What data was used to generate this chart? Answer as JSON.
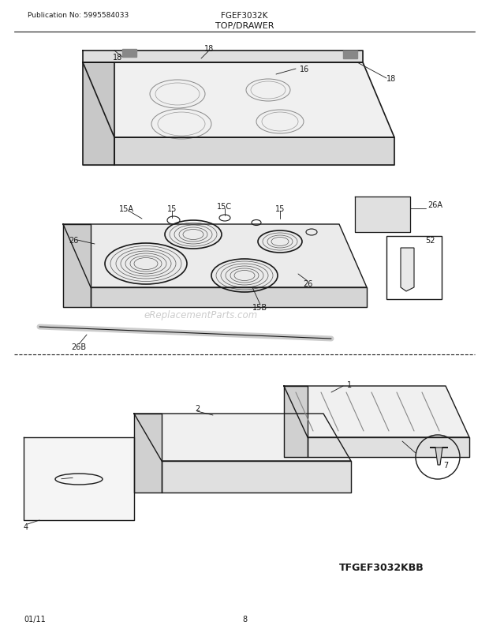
{
  "title": "TOP/DRAWER",
  "model": "FGEF3032K",
  "pub_no": "Publication No: 5995584033",
  "footer_model": "TFGEF3032KBB",
  "date": "01/11",
  "page": "8",
  "bg_color": "#ffffff",
  "line_color": "#1a1a1a",
  "text_color": "#1a1a1a",
  "watermark": "eReplacementParts.com"
}
